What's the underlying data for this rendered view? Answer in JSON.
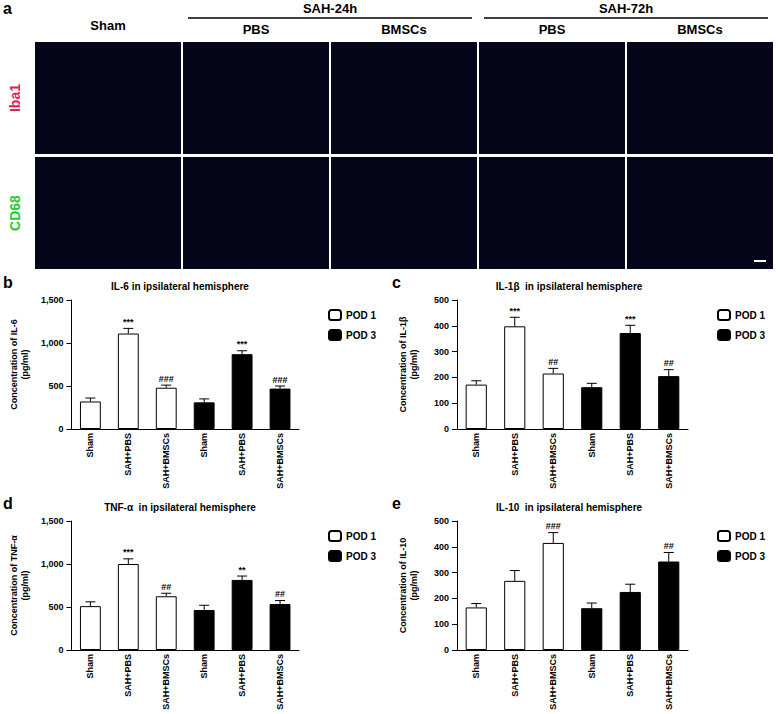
{
  "image_panel": {
    "panel_label": "a",
    "columns": [
      {
        "label": "Sham"
      },
      {
        "group": "SAH-24h",
        "label": "PBS"
      },
      {
        "group": "SAH-24h",
        "label": "BMSCs"
      },
      {
        "group": "SAH-72h",
        "label": "PBS"
      },
      {
        "group": "SAH-72h",
        "label": "BMSCs"
      }
    ],
    "rows": [
      {
        "label": "Iba1",
        "color": "#e0205a"
      },
      {
        "label": "CD68",
        "color": "#22cc33"
      }
    ]
  },
  "chart_data": [
    {
      "type": "bar",
      "panel_label": "b",
      "title": "IL-6 in ipsilateral hemisphere",
      "ylabel": "Concentration of IL-6\n(pg/ml)",
      "categories": [
        "Sham",
        "SAH+PBS",
        "SAH+BMSCs",
        "Sham",
        "SAH+PBS",
        "SAH+BMSCs"
      ],
      "series": [
        {
          "name": "POD 1",
          "color": "#ffffff",
          "values": [
            320,
            1110,
            480,
            null,
            null,
            null
          ],
          "errors": [
            40,
            60,
            30,
            null,
            null,
            null
          ],
          "annotations": [
            null,
            "***",
            "###",
            null,
            null,
            null
          ]
        },
        {
          "name": "POD 3",
          "color": "#000000",
          "values": [
            null,
            null,
            null,
            310,
            870,
            470
          ],
          "errors": [
            null,
            null,
            null,
            40,
            40,
            30
          ],
          "annotations": [
            null,
            null,
            null,
            null,
            "***",
            "###"
          ]
        }
      ],
      "ylim": [
        0,
        1500
      ],
      "yticks": [
        0,
        500,
        1000,
        1500
      ],
      "grid": false,
      "legend": "right"
    },
    {
      "type": "bar",
      "panel_label": "c",
      "title": "IL-1β  in ipsilateral hemisphere",
      "ylabel": "Concentration of IL-1β\n(pg/ml)",
      "categories": [
        "Sham",
        "SAH+PBS",
        "SAH+BMSCs",
        "Sham",
        "SAH+PBS",
        "SAH+BMSCs"
      ],
      "series": [
        {
          "name": "POD 1",
          "color": "#ffffff",
          "values": [
            172,
            398,
            215,
            null,
            null,
            null
          ],
          "errors": [
            15,
            35,
            20,
            null,
            null,
            null
          ],
          "annotations": [
            null,
            "***",
            "##",
            null,
            null,
            null
          ]
        },
        {
          "name": "POD 3",
          "color": "#000000",
          "values": [
            null,
            null,
            null,
            162,
            372,
            205
          ],
          "errors": [
            null,
            null,
            null,
            15,
            30,
            25
          ],
          "annotations": [
            null,
            null,
            null,
            null,
            "***",
            "##"
          ]
        }
      ],
      "ylim": [
        0,
        500
      ],
      "yticks": [
        0,
        100,
        200,
        300,
        400,
        500
      ],
      "grid": false,
      "legend": "right"
    },
    {
      "type": "bar",
      "panel_label": "d",
      "title": "TNF-α  in ipsilateral hemisphere",
      "ylabel": "Concentration of TNF-α\n(pg/ml)",
      "categories": [
        "Sham",
        "SAH+PBS",
        "SAH+BMSCs",
        "Sham",
        "SAH+PBS",
        "SAH+BMSCs"
      ],
      "series": [
        {
          "name": "POD 1",
          "color": "#ffffff",
          "values": [
            510,
            1000,
            625,
            null,
            null,
            null
          ],
          "errors": [
            50,
            60,
            35,
            null,
            null,
            null
          ],
          "annotations": [
            null,
            "***",
            "##",
            null,
            null,
            null
          ]
        },
        {
          "name": "POD 3",
          "color": "#000000",
          "values": [
            null,
            null,
            null,
            465,
            815,
            535
          ],
          "errors": [
            null,
            null,
            null,
            55,
            45,
            40
          ],
          "annotations": [
            null,
            null,
            null,
            null,
            "**",
            "##"
          ]
        }
      ],
      "ylim": [
        0,
        1500
      ],
      "yticks": [
        0,
        500,
        1000,
        1500
      ],
      "grid": false,
      "legend": "right"
    },
    {
      "type": "bar",
      "panel_label": "e",
      "title": "IL-10  in ipsilateral hemisphere",
      "ylabel": "Concentration of IL-10\n(pg/ml)",
      "categories": [
        "Sham",
        "SAH+PBS",
        "SAH+BMSCs",
        "Sham",
        "SAH+PBS",
        "SAH+BMSCs"
      ],
      "series": [
        {
          "name": "POD 1",
          "color": "#ffffff",
          "values": [
            165,
            268,
            415,
            null,
            null,
            null
          ],
          "errors": [
            15,
            40,
            40,
            null,
            null,
            null
          ],
          "annotations": [
            null,
            null,
            "###",
            null,
            null,
            null
          ]
        },
        {
          "name": "POD 3",
          "color": "#000000",
          "values": [
            null,
            null,
            null,
            162,
            225,
            343
          ],
          "errors": [
            null,
            null,
            null,
            20,
            30,
            35
          ],
          "annotations": [
            null,
            null,
            null,
            null,
            null,
            "##"
          ]
        }
      ],
      "ylim": [
        0,
        500
      ],
      "yticks": [
        0,
        100,
        200,
        300,
        400,
        500
      ],
      "grid": false,
      "legend": "right"
    }
  ]
}
